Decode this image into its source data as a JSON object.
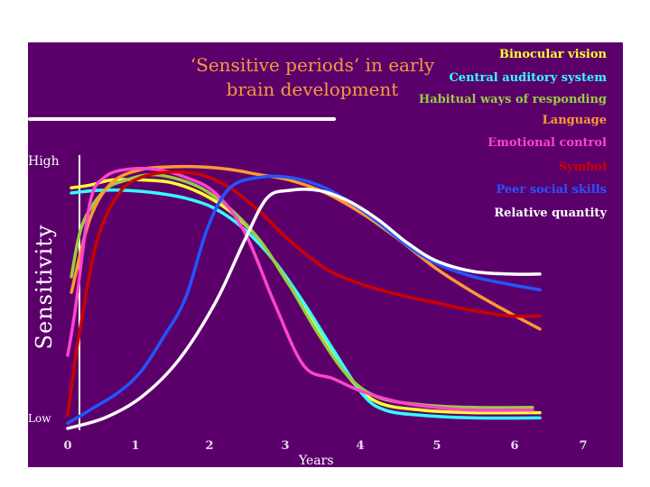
{
  "title": {
    "line1": "‘Sensitive periods’ in early",
    "line2": "brain development"
  },
  "chart_data": {
    "type": "line",
    "ylabel": "Sensitivity",
    "xlabel": "Years",
    "y_high_label": "High",
    "y_low_label": "Low",
    "xlim": [
      0,
      7
    ],
    "ylim": [
      0,
      1
    ],
    "x_ticks": [
      "0",
      "1",
      "2",
      "3",
      "4",
      "5",
      "6",
      "7"
    ],
    "legend_position": "top-right",
    "series": [
      {
        "name": "Binocular vision",
        "color": "#ffff33",
        "x": [
          0.05,
          0.3,
          0.6,
          1.0,
          1.4,
          1.8,
          2.2,
          2.6,
          3.0,
          3.4,
          3.8,
          4.2,
          4.8,
          5.5,
          6.4
        ],
        "y": [
          0.92,
          0.93,
          0.95,
          0.95,
          0.94,
          0.9,
          0.83,
          0.72,
          0.55,
          0.38,
          0.2,
          0.1,
          0.07,
          0.06,
          0.06
        ]
      },
      {
        "name": "Central auditory system",
        "color": "#33ffff",
        "x": [
          0.05,
          0.4,
          0.8,
          1.2,
          1.6,
          2.0,
          2.4,
          2.8,
          3.2,
          3.6,
          4.0,
          4.3,
          4.8,
          5.5,
          6.4
        ],
        "y": [
          0.9,
          0.91,
          0.91,
          0.9,
          0.88,
          0.84,
          0.76,
          0.64,
          0.48,
          0.3,
          0.13,
          0.07,
          0.05,
          0.04,
          0.04
        ]
      },
      {
        "name": "Habitual ways of responding",
        "color": "#99cc44",
        "x": [
          0.05,
          0.2,
          0.5,
          0.8,
          1.1,
          1.4,
          1.8,
          2.2,
          2.6,
          3.0,
          3.4,
          3.8,
          4.2,
          4.8,
          5.5,
          6.3
        ],
        "y": [
          0.58,
          0.78,
          0.91,
          0.95,
          0.97,
          0.96,
          0.92,
          0.84,
          0.72,
          0.55,
          0.36,
          0.2,
          0.12,
          0.09,
          0.08,
          0.08
        ]
      },
      {
        "name": "Language",
        "color": "#ff9933",
        "x": [
          0.05,
          0.3,
          0.6,
          1.0,
          1.4,
          1.8,
          2.2,
          2.6,
          3.0,
          3.5,
          4.0,
          4.5,
          5.0,
          5.5,
          6.0,
          6.4
        ],
        "y": [
          0.52,
          0.8,
          0.94,
          0.99,
          1.0,
          1.0,
          0.99,
          0.97,
          0.95,
          0.9,
          0.82,
          0.72,
          0.61,
          0.52,
          0.44,
          0.38
        ]
      },
      {
        "name": "Emotional control",
        "color": "#ff44cc",
        "x": [
          0.0,
          0.1,
          0.3,
          0.5,
          0.8,
          1.2,
          1.6,
          2.0,
          2.4,
          2.8,
          3.2,
          3.6,
          4.0,
          4.5,
          5.0,
          5.5,
          6.3
        ],
        "y": [
          0.28,
          0.45,
          0.86,
          0.96,
          0.99,
          0.99,
          0.96,
          0.9,
          0.75,
          0.48,
          0.24,
          0.19,
          0.14,
          0.1,
          0.08,
          0.07,
          0.07
        ]
      },
      {
        "name": "Symbol",
        "color": "#cc0000",
        "x": [
          0.0,
          0.15,
          0.4,
          0.7,
          1.0,
          1.4,
          1.8,
          2.2,
          2.6,
          3.0,
          3.5,
          4.0,
          4.5,
          5.0,
          5.5,
          6.0,
          6.4
        ],
        "y": [
          0.05,
          0.35,
          0.72,
          0.9,
          0.96,
          0.98,
          0.97,
          0.92,
          0.83,
          0.72,
          0.61,
          0.55,
          0.51,
          0.48,
          0.45,
          0.43,
          0.43
        ]
      },
      {
        "name": "Peer social skills",
        "color": "#2255ff",
        "x": [
          0.0,
          0.3,
          0.7,
          1.0,
          1.3,
          1.6,
          1.9,
          2.2,
          2.6,
          3.0,
          3.4,
          3.8,
          4.2,
          4.6,
          5.0,
          5.5,
          6.0,
          6.4
        ],
        "y": [
          0.02,
          0.07,
          0.14,
          0.22,
          0.35,
          0.5,
          0.77,
          0.92,
          0.96,
          0.96,
          0.93,
          0.87,
          0.79,
          0.7,
          0.63,
          0.58,
          0.55,
          0.53
        ]
      },
      {
        "name": "Relative quantity",
        "color": "#ffffff",
        "x": [
          0.0,
          0.5,
          1.0,
          1.5,
          2.0,
          2.4,
          2.7,
          3.0,
          3.4,
          3.8,
          4.2,
          4.6,
          5.0,
          5.5,
          6.0,
          6.4
        ],
        "y": [
          0.0,
          0.04,
          0.12,
          0.26,
          0.48,
          0.72,
          0.88,
          0.91,
          0.91,
          0.87,
          0.8,
          0.71,
          0.64,
          0.6,
          0.59,
          0.59
        ]
      }
    ]
  }
}
